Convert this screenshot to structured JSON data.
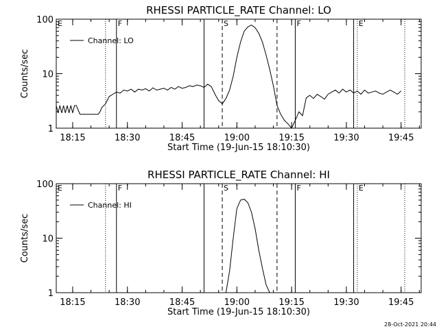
{
  "footer_timestamp": "28-Oct-2021 20:44",
  "chart_data": [
    {
      "type": "line",
      "title": "RHESSI PARTICLE_RATE Channel: LO",
      "xlabel": "Start Time (19-Jun-15 18:10:30)",
      "ylabel": "Counts/sec",
      "yscale": "log",
      "ylim": [
        1,
        100
      ],
      "ytick_labels": [
        "1",
        "10",
        "100"
      ],
      "xlim_minutes": [
        "18:10:30",
        "19:50:30"
      ],
      "xtick_labels": [
        "18:15",
        "18:30",
        "18:45",
        "19:00",
        "19:15",
        "19:30",
        "19:45"
      ],
      "legend": {
        "position": "top-left",
        "label": "Channel: LO"
      },
      "series": [
        {
          "name": "Channel: LO",
          "x": [
            "18:10:30",
            "18:11",
            "18:11:30",
            "18:12",
            "18:12:30",
            "18:13",
            "18:13:30",
            "18:14",
            "18:14:30",
            "18:15",
            "18:15:30",
            "18:16",
            "18:17",
            "18:19",
            "18:21",
            "18:22",
            "18:22:30",
            "18:23",
            "18:24",
            "18:25",
            "18:26",
            "18:27",
            "18:28",
            "18:29",
            "18:30",
            "18:31",
            "18:32",
            "18:33",
            "18:34",
            "18:35",
            "18:36",
            "18:37",
            "18:38",
            "18:39",
            "18:40",
            "18:41",
            "18:42",
            "18:43",
            "18:44",
            "18:45",
            "18:46",
            "18:47",
            "18:48",
            "18:49",
            "18:50",
            "18:51",
            "18:52",
            "18:53",
            "18:54",
            "18:55",
            "18:56",
            "18:57",
            "18:58",
            "18:59",
            "19:00",
            "19:01",
            "19:02",
            "19:03",
            "19:04",
            "19:05",
            "19:06",
            "19:07",
            "19:08",
            "19:09",
            "19:10",
            "19:11",
            "19:12",
            "19:13",
            "19:14",
            "19:15",
            "19:16",
            "19:17",
            "19:18",
            "19:19",
            "19:20",
            "19:21",
            "19:22",
            "19:23",
            "19:24",
            "19:25",
            "19:26",
            "19:27",
            "19:28",
            "19:29",
            "19:30",
            "19:31",
            "19:32",
            "19:33",
            "19:34",
            "19:35",
            "19:36",
            "19:37",
            "19:38",
            "19:39",
            "19:40",
            "19:41",
            "19:42",
            "19:43",
            "19:44",
            "19:45"
          ],
          "y": [
            2.6,
            1.9,
            2.6,
            1.9,
            2.6,
            1.9,
            2.6,
            1.9,
            2.6,
            1.9,
            2.6,
            2.6,
            1.8,
            1.8,
            1.8,
            1.8,
            2.0,
            2.4,
            2.8,
            3.8,
            4.2,
            4.6,
            4.4,
            5.0,
            4.8,
            5.2,
            4.6,
            5.2,
            5.0,
            5.3,
            4.8,
            5.5,
            5.0,
            5.2,
            5.4,
            5.0,
            5.6,
            5.2,
            5.8,
            5.4,
            5.6,
            6.0,
            5.8,
            6.2,
            6.0,
            5.6,
            6.4,
            5.8,
            4.2,
            3.2,
            2.8,
            3.5,
            5.0,
            9.0,
            20,
            38,
            60,
            72,
            78,
            70,
            55,
            38,
            22,
            12,
            6.0,
            2.6,
            1.8,
            1.4,
            1.2,
            1.0,
            1.4,
            2.0,
            1.7,
            3.6,
            4.0,
            3.5,
            4.2,
            3.8,
            3.4,
            4.2,
            4.6,
            5.0,
            4.4,
            5.2,
            4.6,
            5.0,
            4.4,
            4.8,
            4.2,
            5.0,
            4.4,
            4.6,
            4.8,
            4.4,
            4.2,
            4.6,
            5.0,
            4.6,
            4.2,
            4.8
          ]
        }
      ],
      "markers": [
        {
          "label": "E",
          "time": "18:10:30",
          "style": "solid"
        },
        {
          "label": "",
          "time": "18:24",
          "style": "dotted"
        },
        {
          "label": "F",
          "time": "18:27",
          "style": "solid"
        },
        {
          "label": "",
          "time": "18:51",
          "style": "solid"
        },
        {
          "label": "S",
          "time": "18:56",
          "style": "dashed"
        },
        {
          "label": "",
          "time": "19:11",
          "style": "dashed"
        },
        {
          "label": "F",
          "time": "19:16",
          "style": "solid"
        },
        {
          "label": "",
          "time": "19:32",
          "style": "solid"
        },
        {
          "label": "E",
          "time": "19:33",
          "style": "dotted"
        },
        {
          "label": "",
          "time": "19:46",
          "style": "dotted"
        }
      ]
    },
    {
      "type": "line",
      "title": "RHESSI PARTICLE_RATE Channel: HI",
      "xlabel": "Start Time (19-Jun-15 18:10:30)",
      "ylabel": "Counts/sec",
      "yscale": "log",
      "ylim": [
        1,
        100
      ],
      "ytick_labels": [
        "1",
        "10",
        "100"
      ],
      "xlim_minutes": [
        "18:10:30",
        "19:50:30"
      ],
      "xtick_labels": [
        "18:15",
        "18:30",
        "18:45",
        "19:00",
        "19:15",
        "19:30",
        "19:45"
      ],
      "legend": {
        "position": "top-left",
        "label": "Channel: HI"
      },
      "series": [
        {
          "name": "Channel: HI",
          "x": [
            "18:57",
            "18:58",
            "18:59",
            "19:00",
            "19:01",
            "19:02",
            "19:03",
            "19:04",
            "19:05",
            "19:06",
            "19:07",
            "19:08",
            "19:09"
          ],
          "y": [
            1.0,
            2.5,
            10,
            35,
            50,
            52,
            45,
            30,
            15,
            6.0,
            2.8,
            1.4,
            1.0
          ]
        }
      ],
      "markers": [
        {
          "label": "E",
          "time": "18:10:30",
          "style": "solid"
        },
        {
          "label": "",
          "time": "18:24",
          "style": "dotted"
        },
        {
          "label": "F",
          "time": "18:27",
          "style": "solid"
        },
        {
          "label": "",
          "time": "18:51",
          "style": "solid"
        },
        {
          "label": "S",
          "time": "18:56",
          "style": "dashed"
        },
        {
          "label": "",
          "time": "19:11",
          "style": "dashed"
        },
        {
          "label": "F",
          "time": "19:16",
          "style": "solid"
        },
        {
          "label": "",
          "time": "19:32",
          "style": "solid"
        },
        {
          "label": "E",
          "time": "19:33",
          "style": "dotted"
        },
        {
          "label": "",
          "time": "19:46",
          "style": "dotted"
        }
      ]
    }
  ]
}
